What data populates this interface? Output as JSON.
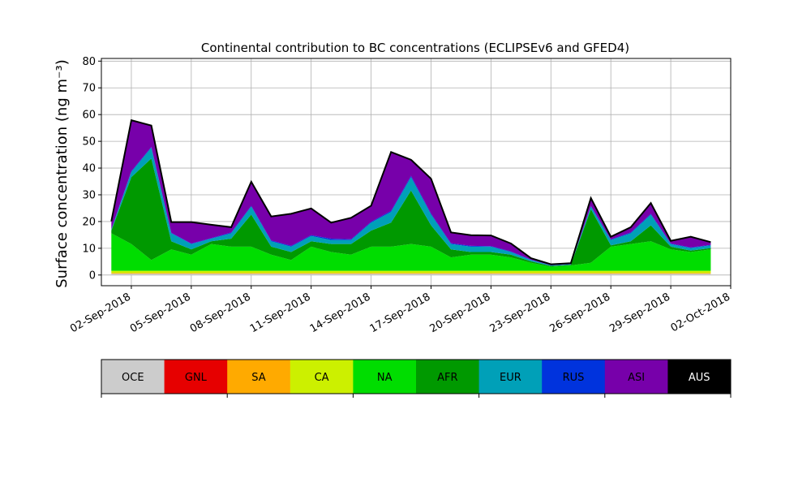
{
  "chart_data": {
    "type": "area",
    "stacked": true,
    "title": "Continental contribution to BC concentrations (ECLIPSEv6 and GFED4)",
    "ylabel": "Surface concentration (ng m⁻³)",
    "xlabel": "",
    "ylim": [
      -4,
      81
    ],
    "xlim": [
      "2018-08-31T12:00",
      "2018-10-02T00:00"
    ],
    "yticks": [
      0,
      10,
      20,
      30,
      40,
      50,
      60,
      70,
      80
    ],
    "xticks": [
      "02-Sep-2018",
      "05-Sep-2018",
      "08-Sep-2018",
      "11-Sep-2018",
      "14-Sep-2018",
      "17-Sep-2018",
      "20-Sep-2018",
      "23-Sep-2018",
      "26-Sep-2018",
      "29-Sep-2018",
      "02-Oct-2018"
    ],
    "grid": true,
    "legend_position": "bottom (color bar)",
    "x": [
      "2018-09-01",
      "2018-09-02",
      "2018-09-03",
      "2018-09-04",
      "2018-09-05",
      "2018-09-06",
      "2018-09-07",
      "2018-09-08",
      "2018-09-09",
      "2018-09-10",
      "2018-09-11",
      "2018-09-12",
      "2018-09-13",
      "2018-09-14",
      "2018-09-15",
      "2018-09-16",
      "2018-09-17",
      "2018-09-18",
      "2018-09-19",
      "2018-09-20",
      "2018-09-21",
      "2018-09-22",
      "2018-09-23",
      "2018-09-24",
      "2018-09-25",
      "2018-09-26",
      "2018-09-27",
      "2018-09-28",
      "2018-09-29",
      "2018-09-30",
      "2018-10-01"
    ],
    "series": [
      {
        "name": "OCE",
        "color": "#cccccc",
        "values": [
          0.5,
          0.5,
          0.5,
          0.5,
          0.5,
          0.5,
          0.5,
          0.5,
          0.5,
          0.5,
          0.5,
          0.5,
          0.5,
          0.5,
          0.5,
          0.5,
          0.5,
          0.5,
          0.5,
          0.5,
          0.5,
          0.5,
          0.5,
          0.5,
          0.5,
          0.5,
          0.5,
          0.5,
          0.5,
          0.5,
          0.5
        ]
      },
      {
        "name": "GNL",
        "color": "#e60000",
        "values": [
          0,
          0,
          0,
          0,
          0,
          0,
          0,
          0,
          0,
          0,
          0,
          0,
          0,
          0,
          0,
          0,
          0,
          0,
          0,
          0,
          0,
          0,
          0,
          0,
          0,
          0,
          0,
          0,
          0,
          0,
          0
        ]
      },
      {
        "name": "SA",
        "color": "#ffaa00",
        "values": [
          0.3,
          0.3,
          0.3,
          0.3,
          0.3,
          0.3,
          0.3,
          0.3,
          0.3,
          0.3,
          0.3,
          0.3,
          0.3,
          0.3,
          0.3,
          0.3,
          0.3,
          0.3,
          0.3,
          0.3,
          0.3,
          0.3,
          0.3,
          0.3,
          0.3,
          0.3,
          0.3,
          0.3,
          0.3,
          0.3,
          0.3
        ]
      },
      {
        "name": "CA",
        "color": "#ccf000",
        "values": [
          0.8,
          0.8,
          0.8,
          0.8,
          0.8,
          0.8,
          0.8,
          0.8,
          0.8,
          0.8,
          0.8,
          0.8,
          0.8,
          0.8,
          0.8,
          0.8,
          0.8,
          0.8,
          0.8,
          0.8,
          0.8,
          0.8,
          0.8,
          0.8,
          0.8,
          0.8,
          0.8,
          0.8,
          0.8,
          0.8,
          0.8
        ]
      },
      {
        "name": "NA",
        "color": "#00dd00",
        "values": [
          14,
          10,
          4,
          8,
          6,
          10,
          9,
          9,
          6,
          4,
          9,
          7,
          6,
          9,
          9,
          10,
          9,
          5,
          6,
          6,
          5,
          3,
          1.5,
          2,
          3,
          9,
          10,
          11,
          8,
          7,
          8
        ]
      },
      {
        "name": "AFR",
        "color": "#009900",
        "values": [
          1,
          25,
          38,
          3,
          2,
          1,
          3,
          12,
          3,
          3,
          2,
          3,
          4,
          6,
          9,
          20,
          8,
          3,
          1,
          1,
          1,
          0.5,
          0.3,
          0.2,
          20,
          0.5,
          1,
          6,
          1,
          0.5,
          0.5
        ]
      },
      {
        "name": "EUR",
        "color": "#00a0b8",
        "values": [
          0.5,
          2,
          4,
          3,
          2,
          1,
          2,
          3,
          2,
          2,
          2,
          1.5,
          1.5,
          3,
          4,
          5,
          4,
          2,
          2,
          2,
          1,
          0.5,
          0.2,
          0.2,
          1,
          2,
          3,
          4,
          1,
          1,
          1
        ]
      },
      {
        "name": "RUS",
        "color": "#0033dd",
        "values": [
          0,
          0.3,
          0.3,
          0.2,
          0.2,
          0.2,
          0.3,
          0.3,
          0.3,
          0.3,
          0.3,
          0.5,
          0.3,
          0.3,
          0.4,
          0.5,
          0.4,
          0.3,
          0.3,
          0.2,
          0.2,
          0.1,
          0.1,
          0.1,
          0.2,
          0.2,
          0.3,
          0.3,
          0.2,
          0.2,
          0.2
        ]
      },
      {
        "name": "ASI",
        "color": "#7700aa",
        "values": [
          3,
          19,
          8,
          4,
          8,
          5,
          2,
          9,
          9,
          12,
          10,
          6,
          8,
          6,
          22,
          6,
          13,
          4,
          4,
          4,
          3,
          0.6,
          0.3,
          0.3,
          3,
          1,
          2,
          4,
          1,
          4,
          1
        ]
      },
      {
        "name": "AUS",
        "color": "#000000",
        "values": [
          0,
          0,
          0,
          0,
          0,
          0,
          0,
          0,
          0,
          0,
          0,
          0,
          0,
          0,
          0,
          0,
          0,
          0,
          0,
          0,
          0,
          0,
          0,
          0,
          0,
          0,
          0,
          0,
          0,
          0,
          0
        ]
      }
    ]
  }
}
